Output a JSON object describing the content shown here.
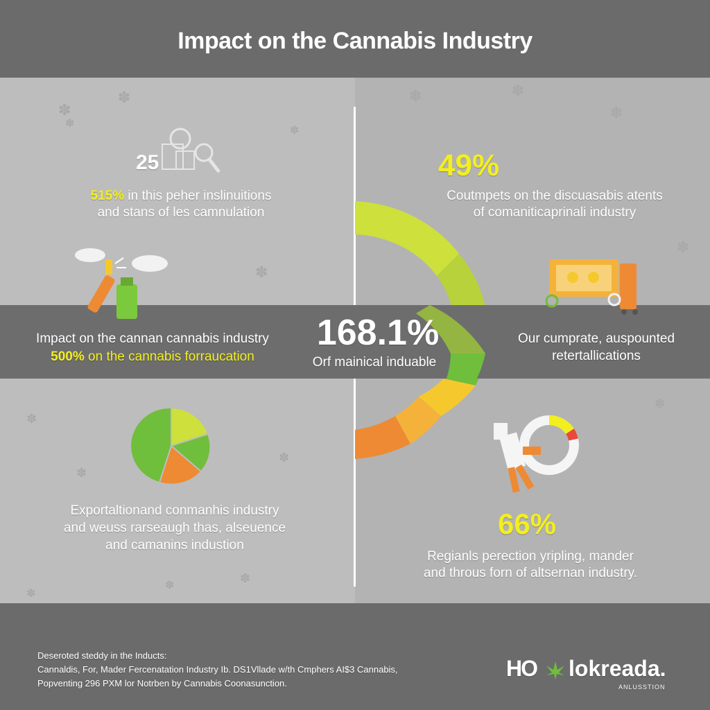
{
  "title": "Impact on the Cannabis Industry",
  "top_left": {
    "number": "25",
    "highlight": "515%",
    "line1": " in this peher inslinuitions",
    "line2": "and stans of les camnulation"
  },
  "top_right": {
    "stat": "49%",
    "line1": "Coutmpets on the discuasabis atents",
    "line2": "of comaniticaprinali industry"
  },
  "band": {
    "left_line1": "Impact on the cannan cannabis industry",
    "left_highlight": "500%",
    "left_line2": " on the cannabis forraucation",
    "center_stat": "168.1%",
    "center_caption": "Orf mainical induable",
    "right_line1": "Our cumprate, auspounted",
    "right_line2": "retertallications"
  },
  "bottom_left": {
    "line1": "Exportaltionand conmanhis industry",
    "line2": "and weuss rarseaugh thas, alseuence",
    "line3": "and camanins industion"
  },
  "bottom_right": {
    "stat": "66%",
    "line1": "Regianls perection yripling, mander",
    "line2": "and throus forn of altsernan industry."
  },
  "footer": {
    "line1": "Deseroted steddy in the Inducts:",
    "line2": "Cannaldis, For, Mader Fercenatation Industry Ib. DS1Vllade w/th Cmphers AI$3 Cannabis,",
    "line3": "Popventing 296 PXM lor Notrben by Cannabis Coonasunction."
  },
  "logo": {
    "text_left": "HO",
    "text_right": "lokreada.",
    "subtext": "ANLUSSTION"
  },
  "colors": {
    "yellow": "#f2ef1f",
    "lime": "#cde03c",
    "green": "#6fbe3c",
    "orange": "#ee8a34",
    "amber": "#f5b23a"
  }
}
